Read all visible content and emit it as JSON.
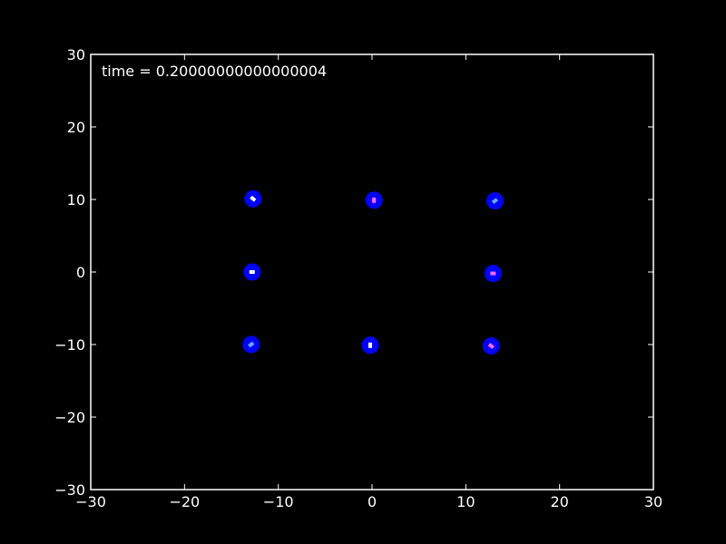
{
  "chart_data": {
    "type": "scatter",
    "title": "",
    "xlabel": "",
    "ylabel": "",
    "xlim": [
      -30,
      30
    ],
    "ylim": [
      -30,
      30
    ],
    "grid": false,
    "background": "#000000",
    "axis_color": "#ffffff",
    "marker_color": "#0000ff",
    "inner_marker_colors": [
      "#ffffff",
      "#ff66ff",
      "#66aaff"
    ],
    "annotation": "time = 0.20000000000000004",
    "xticks": [
      {
        "value": -30,
        "label": "−30"
      },
      {
        "value": -20,
        "label": "−20"
      },
      {
        "value": -10,
        "label": "−10"
      },
      {
        "value": 0,
        "label": "0"
      },
      {
        "value": 10,
        "label": "10"
      },
      {
        "value": 20,
        "label": "20"
      },
      {
        "value": 30,
        "label": "30"
      }
    ],
    "yticks": [
      {
        "value": -30,
        "label": "−30"
      },
      {
        "value": -20,
        "label": "−20"
      },
      {
        "value": -10,
        "label": "−10"
      },
      {
        "value": 0,
        "label": "0"
      },
      {
        "value": 10,
        "label": "10"
      },
      {
        "value": 20,
        "label": "20"
      },
      {
        "value": 30,
        "label": "30"
      }
    ],
    "points": [
      {
        "x": -12.7,
        "y": 10.1
      },
      {
        "x": 0.2,
        "y": 9.9
      },
      {
        "x": 13.1,
        "y": 9.8
      },
      {
        "x": -12.8,
        "y": 0.0
      },
      {
        "x": 12.9,
        "y": -0.2
      },
      {
        "x": -12.9,
        "y": -10.0
      },
      {
        "x": -0.2,
        "y": -10.1
      },
      {
        "x": 12.7,
        "y": -10.2
      }
    ]
  }
}
